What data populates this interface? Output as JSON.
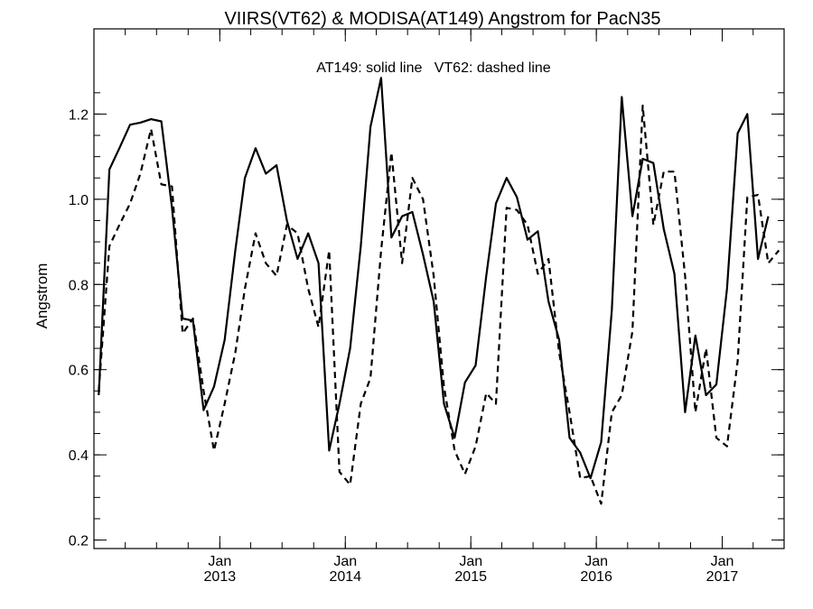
{
  "chart_data": {
    "type": "line",
    "title": "VIIRS(VT62) & MODISA(AT149)  Angstrom for PacN35",
    "annotation": "AT149: solid line   VT62: dashed line",
    "ylabel": "Angstrom",
    "xlabel": "",
    "ylim": [
      0.18,
      1.4
    ],
    "xlim": [
      "2012-01-01",
      "2017-06-30"
    ],
    "yticks": [
      "0.2",
      "0.4",
      "0.6",
      "0.8",
      "1.0",
      "1.2"
    ],
    "xticks": [
      {
        "month": "Jan",
        "year": "2013",
        "date": "2013-01-01"
      },
      {
        "month": "Jan",
        "year": "2014",
        "date": "2014-01-01"
      },
      {
        "month": "Jan",
        "year": "2015",
        "date": "2015-01-01"
      },
      {
        "month": "Jan",
        "year": "2016",
        "date": "2016-01-01"
      },
      {
        "month": "Jan",
        "year": "2017",
        "date": "2017-01-01"
      }
    ],
    "x": [
      "2012-01",
      "2012-02",
      "2012-03",
      "2012-04",
      "2012-05",
      "2012-06",
      "2012-07",
      "2012-08",
      "2012-09",
      "2012-10",
      "2012-11",
      "2012-12",
      "2013-01",
      "2013-02",
      "2013-03",
      "2013-04",
      "2013-05",
      "2013-06",
      "2013-07",
      "2013-08",
      "2013-09",
      "2013-10",
      "2013-11",
      "2013-12",
      "2014-01",
      "2014-02",
      "2014-03",
      "2014-04",
      "2014-05",
      "2014-06",
      "2014-07",
      "2014-08",
      "2014-09",
      "2014-10",
      "2014-11",
      "2014-12",
      "2015-01",
      "2015-02",
      "2015-03",
      "2015-04",
      "2015-05",
      "2015-06",
      "2015-07",
      "2015-08",
      "2015-09",
      "2015-10",
      "2015-11",
      "2015-12",
      "2016-01",
      "2016-02",
      "2016-03",
      "2016-04",
      "2016-05",
      "2016-06",
      "2016-07",
      "2016-08",
      "2016-09",
      "2016-10",
      "2016-11",
      "2016-12",
      "2017-01",
      "2017-02",
      "2017-03",
      "2017-04",
      "2017-05",
      "2017-06",
      "2017-07"
    ],
    "series": [
      {
        "name": "AT149",
        "style": "solid",
        "color": "#000000",
        "values": [
          0.54,
          1.07,
          1.12,
          1.175,
          1.18,
          1.188,
          1.183,
          0.98,
          0.72,
          0.715,
          0.505,
          0.56,
          0.67,
          0.88,
          1.05,
          1.12,
          1.06,
          1.08,
          0.95,
          0.86,
          0.92,
          0.85,
          0.41,
          0.52,
          0.65,
          0.89,
          1.17,
          1.285,
          0.91,
          0.96,
          0.97,
          0.87,
          0.76,
          0.52,
          0.44,
          0.57,
          0.61,
          0.82,
          0.99,
          1.05,
          1.005,
          0.905,
          0.925,
          0.76,
          0.67,
          0.44,
          0.405,
          0.345,
          0.43,
          0.74,
          1.24,
          0.96,
          1.095,
          1.085,
          0.93,
          0.825,
          0.5,
          0.68,
          0.54,
          0.565,
          0.79,
          1.155,
          1.2,
          0.86,
          0.96,
          null,
          null
        ]
      },
      {
        "name": "VT62",
        "style": "dashed",
        "color": "#000000",
        "values": [
          0.55,
          0.89,
          0.94,
          0.99,
          1.06,
          1.165,
          1.035,
          1.03,
          0.685,
          0.72,
          0.55,
          0.41,
          0.52,
          0.64,
          0.79,
          0.92,
          0.85,
          0.82,
          0.94,
          0.92,
          0.79,
          0.7,
          0.88,
          0.36,
          0.33,
          0.52,
          0.58,
          0.88,
          1.11,
          0.85,
          1.05,
          1.0,
          0.82,
          0.56,
          0.41,
          0.355,
          0.42,
          0.545,
          0.52,
          0.98,
          0.975,
          0.94,
          0.825,
          0.86,
          0.64,
          0.5,
          0.345,
          0.35,
          0.285,
          0.5,
          0.54,
          0.69,
          1.22,
          0.94,
          1.065,
          1.065,
          0.82,
          0.5,
          0.65,
          0.44,
          0.42,
          0.62,
          1.005,
          1.01,
          0.85,
          0.88,
          null
        ]
      }
    ],
    "grid": false,
    "legend": "none"
  }
}
